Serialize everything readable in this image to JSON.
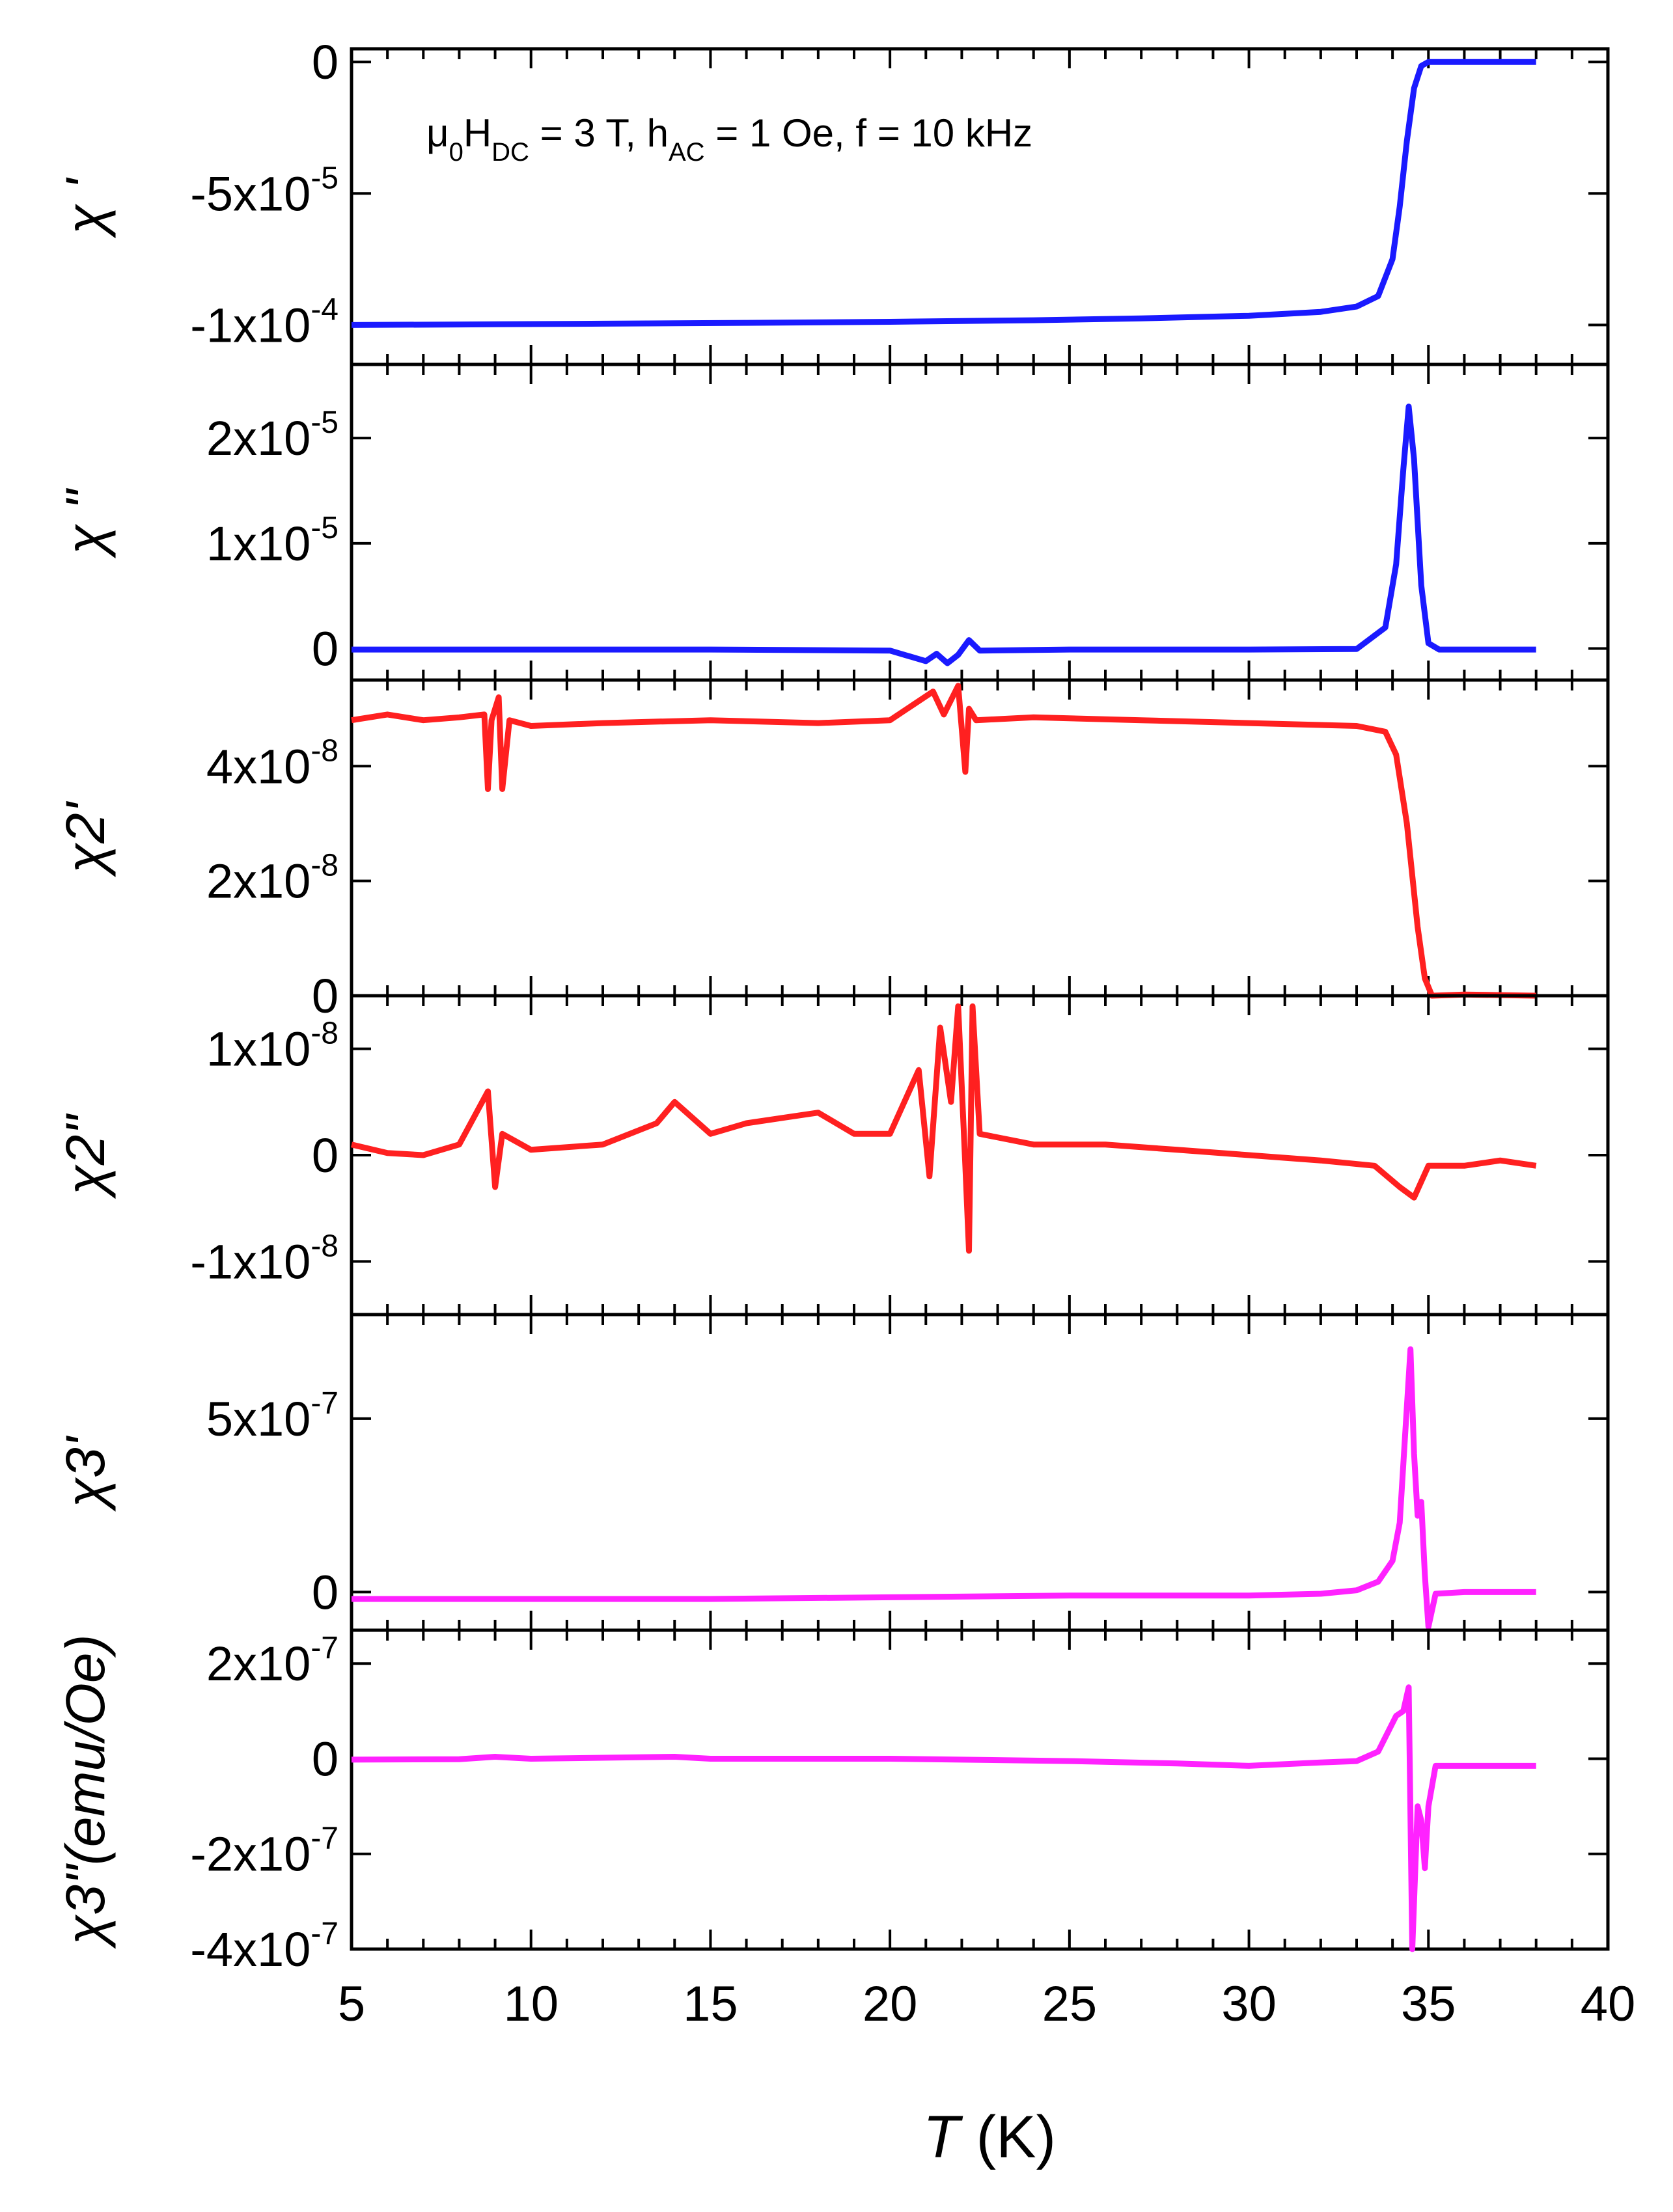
{
  "figure": {
    "annotation": {
      "main": "μ",
      "sub0": "0",
      "H": "H",
      "subDC": "DC",
      "mid": " = 3 T, h",
      "subAC": "AC",
      "tail": " = 1 Oe, f = 10 kHz"
    },
    "xlabel_italic": "T",
    "xlabel_rest": " (K)",
    "colors": {
      "blue": "#1a1aff",
      "red": "#ff2020",
      "magenta": "#ff22ff",
      "axis": "#000000"
    }
  },
  "chart_data": [
    {
      "type": "line",
      "ylabel": "χ '",
      "color": "#1a1aff",
      "ylim": [
        -0.000115,
        5e-06
      ],
      "yticks": [
        0,
        -5e-05,
        -0.0001
      ],
      "ytick_labels": [
        "0",
        "-5x10",
        "-1x10"
      ],
      "ytick_exps": [
        "",
        "-5",
        "-4"
      ],
      "annotation": true,
      "series": [
        {
          "name": "chi1-real",
          "x": [
            5,
            8,
            12,
            16,
            20,
            22,
            24,
            27,
            30,
            32,
            33,
            33.6,
            34,
            34.2,
            34.4,
            34.6,
            34.8,
            35,
            36,
            37,
            38
          ],
          "y": [
            -0.0001,
            -9.98e-05,
            -9.95e-05,
            -9.92e-05,
            -9.88e-05,
            -9.85e-05,
            -9.82e-05,
            -9.75e-05,
            -9.65e-05,
            -9.5e-05,
            -9.3e-05,
            -8.9e-05,
            -7.5e-05,
            -5.5e-05,
            -3e-05,
            -1e-05,
            -1.5e-06,
            0,
            0,
            0,
            0
          ]
        }
      ]
    },
    {
      "type": "line",
      "ylabel": "χ \"",
      "color": "#1a1aff",
      "ylim": [
        -3e-06,
        2.7e-05
      ],
      "yticks": [
        0,
        1e-05,
        2e-05
      ],
      "ytick_labels": [
        "0",
        "1x10",
        "2x10"
      ],
      "ytick_exps": [
        "",
        "-5",
        "-5"
      ],
      "series": [
        {
          "name": "chi1-imag",
          "x": [
            5,
            10,
            15,
            20,
            21,
            21.3,
            21.6,
            21.9,
            22.2,
            22.5,
            25,
            30,
            33,
            33.8,
            34.1,
            34.3,
            34.45,
            34.6,
            34.8,
            35,
            35.3,
            38
          ],
          "y": [
            -1e-07,
            -1e-07,
            -1e-07,
            -2e-07,
            -1.2e-06,
            -5e-07,
            -1.4e-06,
            -6e-07,
            8e-07,
            -2e-07,
            -1e-07,
            -1e-07,
            -5e-08,
            2e-06,
            8e-06,
            1.7e-05,
            2.3e-05,
            1.8e-05,
            6e-06,
            5e-07,
            -1e-07,
            -1e-07
          ]
        }
      ]
    },
    {
      "type": "line",
      "ylabel": "χ2'",
      "color": "#ff2020",
      "ylim": [
        0,
        5.5e-08
      ],
      "yticks": [
        0,
        2e-08,
        4e-08
      ],
      "ytick_labels": [
        "0",
        "2x10",
        "4x10"
      ],
      "ytick_exps": [
        "",
        "-8",
        "-8"
      ],
      "series": [
        {
          "name": "chi2-real",
          "x": [
            5,
            6,
            7,
            8,
            8.7,
            8.8,
            8.9,
            9.1,
            9.2,
            9.4,
            10,
            12,
            15,
            18,
            20,
            21.2,
            21.5,
            21.9,
            22.1,
            22.2,
            22.4,
            24,
            27,
            30,
            33,
            33.8,
            34.1,
            34.4,
            34.7,
            34.9,
            35.1,
            36,
            37,
            38
          ],
          "y": [
            4.8e-08,
            4.9e-08,
            4.8e-08,
            4.85e-08,
            4.9e-08,
            3.6e-08,
            4.8e-08,
            5.2e-08,
            3.6e-08,
            4.8e-08,
            4.7e-08,
            4.75e-08,
            4.8e-08,
            4.75e-08,
            4.8e-08,
            5.3e-08,
            4.9e-08,
            5.4e-08,
            3.9e-08,
            5e-08,
            4.8e-08,
            4.85e-08,
            4.8e-08,
            4.75e-08,
            4.7e-08,
            4.6e-08,
            4.2e-08,
            3e-08,
            1.2e-08,
            3e-09,
            0,
            2e-10,
            1e-10,
            0
          ]
        }
      ]
    },
    {
      "type": "line",
      "ylabel": "χ2\"",
      "color": "#ff2020",
      "ylim": [
        -1.5e-08,
        1.5e-08
      ],
      "yticks": [
        -1e-08,
        0,
        1e-08
      ],
      "ytick_labels": [
        "-1x10",
        "0",
        "1x10"
      ],
      "ytick_exps": [
        "-8",
        "",
        "-8"
      ],
      "series": [
        {
          "name": "chi2-imag",
          "x": [
            5,
            6,
            7,
            8,
            8.8,
            9.0,
            9.2,
            10,
            12,
            13.5,
            14,
            15,
            16,
            17,
            18,
            19,
            20,
            20.8,
            21.1,
            21.4,
            21.7,
            21.9,
            22.1,
            22.2,
            22.3,
            22.5,
            24,
            26,
            28,
            30,
            32,
            33.5,
            34.2,
            34.6,
            35,
            36,
            37,
            38
          ],
          "y": [
            1e-09,
            2e-10,
            0,
            1e-09,
            6e-09,
            -3e-09,
            2e-09,
            5e-10,
            1e-09,
            3e-09,
            5e-09,
            2e-09,
            3e-09,
            3.5e-09,
            4e-09,
            2e-09,
            2e-09,
            8e-09,
            -2e-09,
            1.2e-08,
            5e-09,
            1.4e-08,
            -1e-09,
            -9e-09,
            1.4e-08,
            2e-09,
            1e-09,
            1e-09,
            5e-10,
            0,
            -5e-10,
            -1e-09,
            -3e-09,
            -4e-09,
            -1e-09,
            -1e-09,
            -5e-10,
            -1e-09
          ]
        }
      ]
    },
    {
      "type": "line",
      "ylabel": "χ3'",
      "color": "#ff22ff",
      "ylim": [
        -1.1e-07,
        8e-07
      ],
      "yticks": [
        0,
        5e-07
      ],
      "ytick_labels": [
        "0",
        "5x10"
      ],
      "ytick_exps": [
        "",
        "-7"
      ],
      "series": [
        {
          "name": "chi3-real",
          "x": [
            5,
            10,
            15,
            20,
            25,
            30,
            32,
            33,
            33.6,
            34.0,
            34.2,
            34.35,
            34.5,
            34.6,
            34.7,
            34.8,
            34.9,
            35.0,
            35.2,
            36,
            38
          ],
          "y": [
            -2e-08,
            -2e-08,
            -2e-08,
            -1.5e-08,
            -1e-08,
            -1e-08,
            -5e-09,
            5e-09,
            3e-08,
            9e-08,
            2e-07,
            4.5e-07,
            7e-07,
            4e-07,
            2.2e-07,
            2.6e-07,
            5e-08,
            -1e-07,
            -5e-09,
            0,
            0
          ]
        }
      ]
    },
    {
      "type": "line",
      "ylabel": "χ3\"(emu/Oe)",
      "color": "#ff22ff",
      "ylim": [
        -4e-07,
        2.7e-07
      ],
      "yticks": [
        -4e-07,
        -2e-07,
        0,
        2e-07
      ],
      "ytick_labels": [
        "-4x10",
        "-2x10",
        "0",
        "2x10"
      ],
      "ytick_exps": [
        "-7",
        "-7",
        "",
        "-7"
      ],
      "series": [
        {
          "name": "chi3-imag",
          "x": [
            5,
            8,
            9,
            10,
            14,
            15,
            20,
            25,
            28,
            30,
            32,
            33,
            33.6,
            33.9,
            34.1,
            34.3,
            34.45,
            34.55,
            34.7,
            34.8,
            34.9,
            35.0,
            35.2,
            36,
            38
          ],
          "y": [
            -2e-09,
            -1e-09,
            4e-09,
            0,
            4e-09,
            0,
            0,
            -5e-09,
            -1e-08,
            -1.5e-08,
            -8e-09,
            -5e-09,
            1.5e-08,
            6e-08,
            9e-08,
            1e-07,
            1.5e-07,
            -4e-07,
            -1e-07,
            -1.3e-07,
            -2.3e-07,
            -1e-07,
            -1.5e-08,
            -1.5e-08,
            -1.5e-08
          ]
        }
      ]
    }
  ],
  "xaxis": {
    "xlim": [
      5,
      40
    ],
    "ticks": [
      5,
      10,
      15,
      20,
      25,
      30,
      35,
      40
    ],
    "tick_labels": [
      "5",
      "10",
      "15",
      "20",
      "25",
      "30",
      "35",
      "40"
    ]
  }
}
